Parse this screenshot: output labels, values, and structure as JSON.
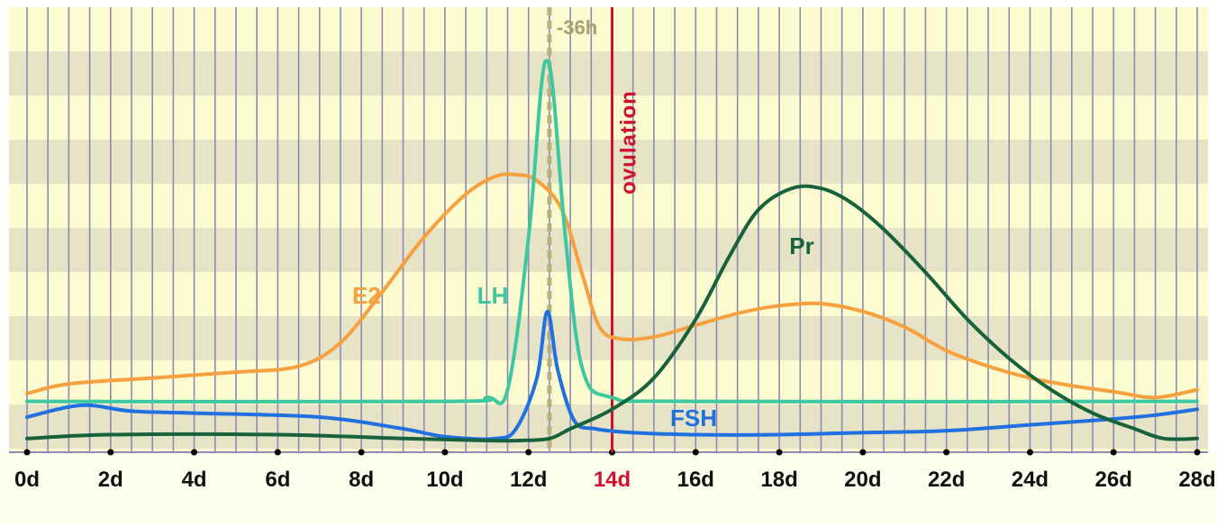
{
  "chart_data": {
    "type": "line",
    "x_unit": "d",
    "xlim": [
      0,
      28
    ],
    "ylim": [
      0,
      100
    ],
    "x_ticks": [
      0,
      2,
      4,
      6,
      8,
      10,
      12,
      14,
      16,
      18,
      20,
      22,
      24,
      26,
      28
    ],
    "x_tick_labels": [
      "0d",
      "2d",
      "4d",
      "6d",
      "8d",
      "10d",
      "12d",
      "14d",
      "16d",
      "18d",
      "20d",
      "22d",
      "24d",
      "26d",
      "28d"
    ],
    "highlighted_tick": "14d",
    "grid": true,
    "series": [
      {
        "name": "E2",
        "color": "#f7a040",
        "x": [
          0,
          1,
          3,
          5,
          6.5,
          7.5,
          8.5,
          9.5,
          10.5,
          11.2,
          11.7,
          12.2,
          12.8,
          13.3,
          13.7,
          14.2,
          15,
          16,
          17,
          18,
          19,
          20,
          21,
          22,
          23,
          24,
          25,
          26,
          27,
          28
        ],
        "y": [
          12,
          14.5,
          16,
          17.5,
          19,
          25,
          38,
          52,
          63,
          67.5,
          68,
          66.5,
          59,
          42,
          29,
          26,
          26.5,
          29.5,
          32.5,
          34.5,
          35,
          33,
          29,
          23,
          19,
          16,
          14,
          12.5,
          11,
          13
        ]
      },
      {
        "name": "LH",
        "color": "#3ec8a0",
        "x": [
          0,
          10,
          11,
          11.5,
          12,
          12.3,
          12.45,
          12.6,
          12.9,
          13.3,
          14,
          16,
          28
        ],
        "y": [
          10,
          10,
          11,
          13,
          52,
          90,
          97,
          88,
          50,
          18,
          11,
          10,
          10
        ]
      },
      {
        "name": "FSH",
        "color": "#2070e0",
        "x": [
          0,
          1.3,
          2.5,
          4,
          7,
          9,
          10,
          11.2,
          11.7,
          12.2,
          12.45,
          12.7,
          13.1,
          13.6,
          14.5,
          16,
          18,
          20,
          22,
          24,
          26,
          27,
          28
        ],
        "y": [
          6,
          9,
          7.5,
          7,
          6,
          3,
          1,
          0.5,
          3,
          16,
          33,
          18,
          5,
          3,
          2,
          1.5,
          1.5,
          2,
          2.5,
          4,
          5.5,
          6.5,
          8
        ]
      },
      {
        "name": "Pr",
        "color": "#17623a",
        "x": [
          0,
          2,
          6,
          9,
          11,
          11.8,
          12.5,
          13,
          14,
          15,
          16,
          16.8,
          17.5,
          18.3,
          19,
          19.7,
          20.5,
          21.5,
          22.5,
          23.5,
          24.5,
          25.5,
          26.5,
          27.2,
          28
        ],
        "y": [
          0.5,
          1.5,
          1.5,
          0.5,
          0,
          0,
          0.5,
          3,
          8,
          16,
          31,
          47,
          59,
          64.5,
          64.5,
          61,
          54,
          43,
          31,
          21,
          13,
          7,
          3,
          0.5,
          0.5
        ]
      }
    ],
    "annotations": [
      {
        "label": "-36h",
        "x": 12.5,
        "color": "#b8b080",
        "style": "dashed"
      },
      {
        "label": "ovulation",
        "x": 14,
        "color": "#d01030",
        "style": "solid"
      }
    ]
  }
}
